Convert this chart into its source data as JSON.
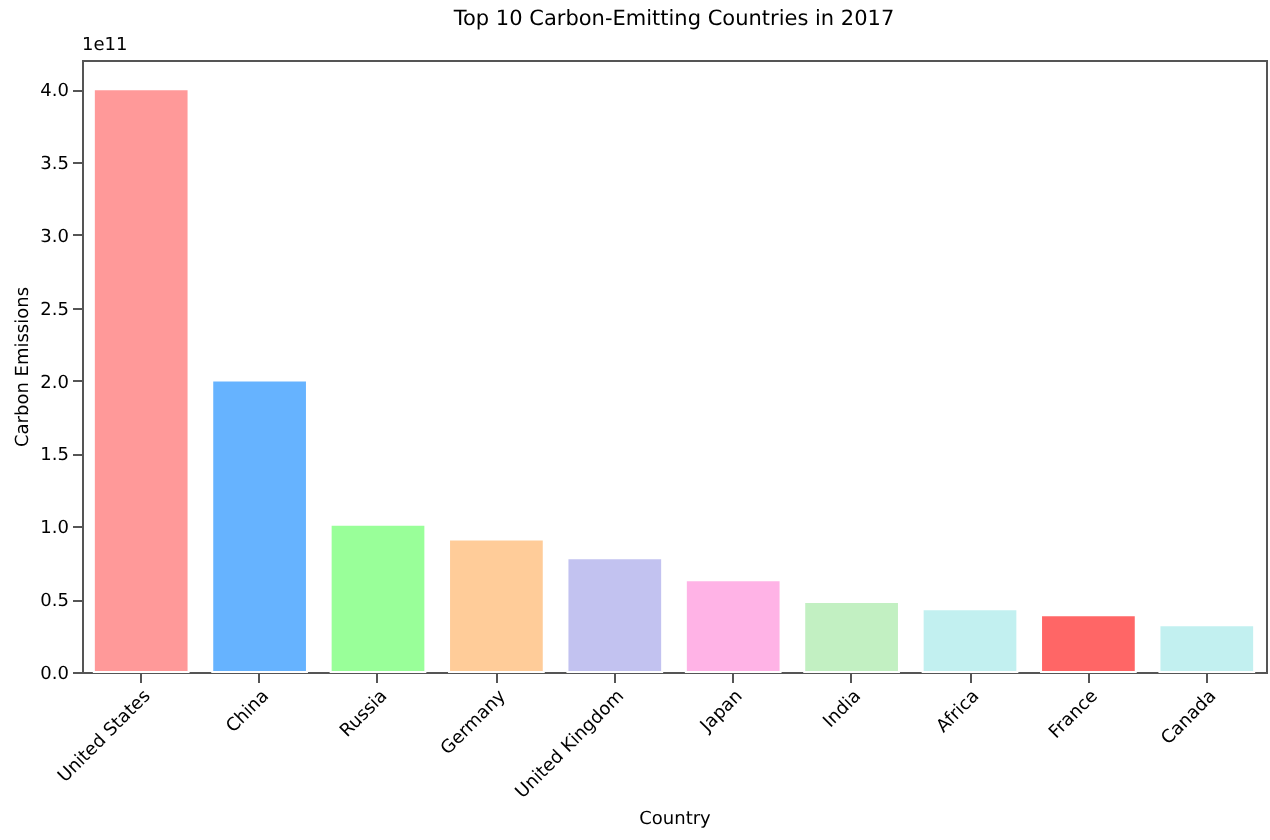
{
  "chart_data": {
    "type": "bar",
    "title": "Top 10 Carbon-Emitting Countries in 2017",
    "xlabel": "Country",
    "ylabel": "Carbon Emissions",
    "annotations": [
      "1e11"
    ],
    "categories": [
      "United States",
      "China",
      "Russia",
      "Germany",
      "United Kingdom",
      "Japan",
      "India",
      "Africa",
      "France",
      "Canada"
    ],
    "values": [
      4.0,
      2.0,
      1.01,
      0.91,
      0.78,
      0.63,
      0.48,
      0.43,
      0.39,
      0.32
    ],
    "colors": [
      "#ff9999",
      "#66b3ff",
      "#99ff99",
      "#ffcc99",
      "#c2c2f0",
      "#ffb3e6",
      "#c2f0c2",
      "#c2f0f0",
      "#ff6666",
      "#c2f0f0"
    ],
    "ylim": [
      0,
      4.2
    ],
    "yticks": [
      {
        "value": 0,
        "label": "0.0"
      },
      0.5,
      {
        "value": 1,
        "label": "1.0"
      },
      1.5,
      {
        "value": 2,
        "label": "2.0"
      },
      2.5,
      {
        "value": 3,
        "label": "3.0"
      },
      3.5,
      {
        "value": 4,
        "label": "4.0"
      }
    ]
  }
}
